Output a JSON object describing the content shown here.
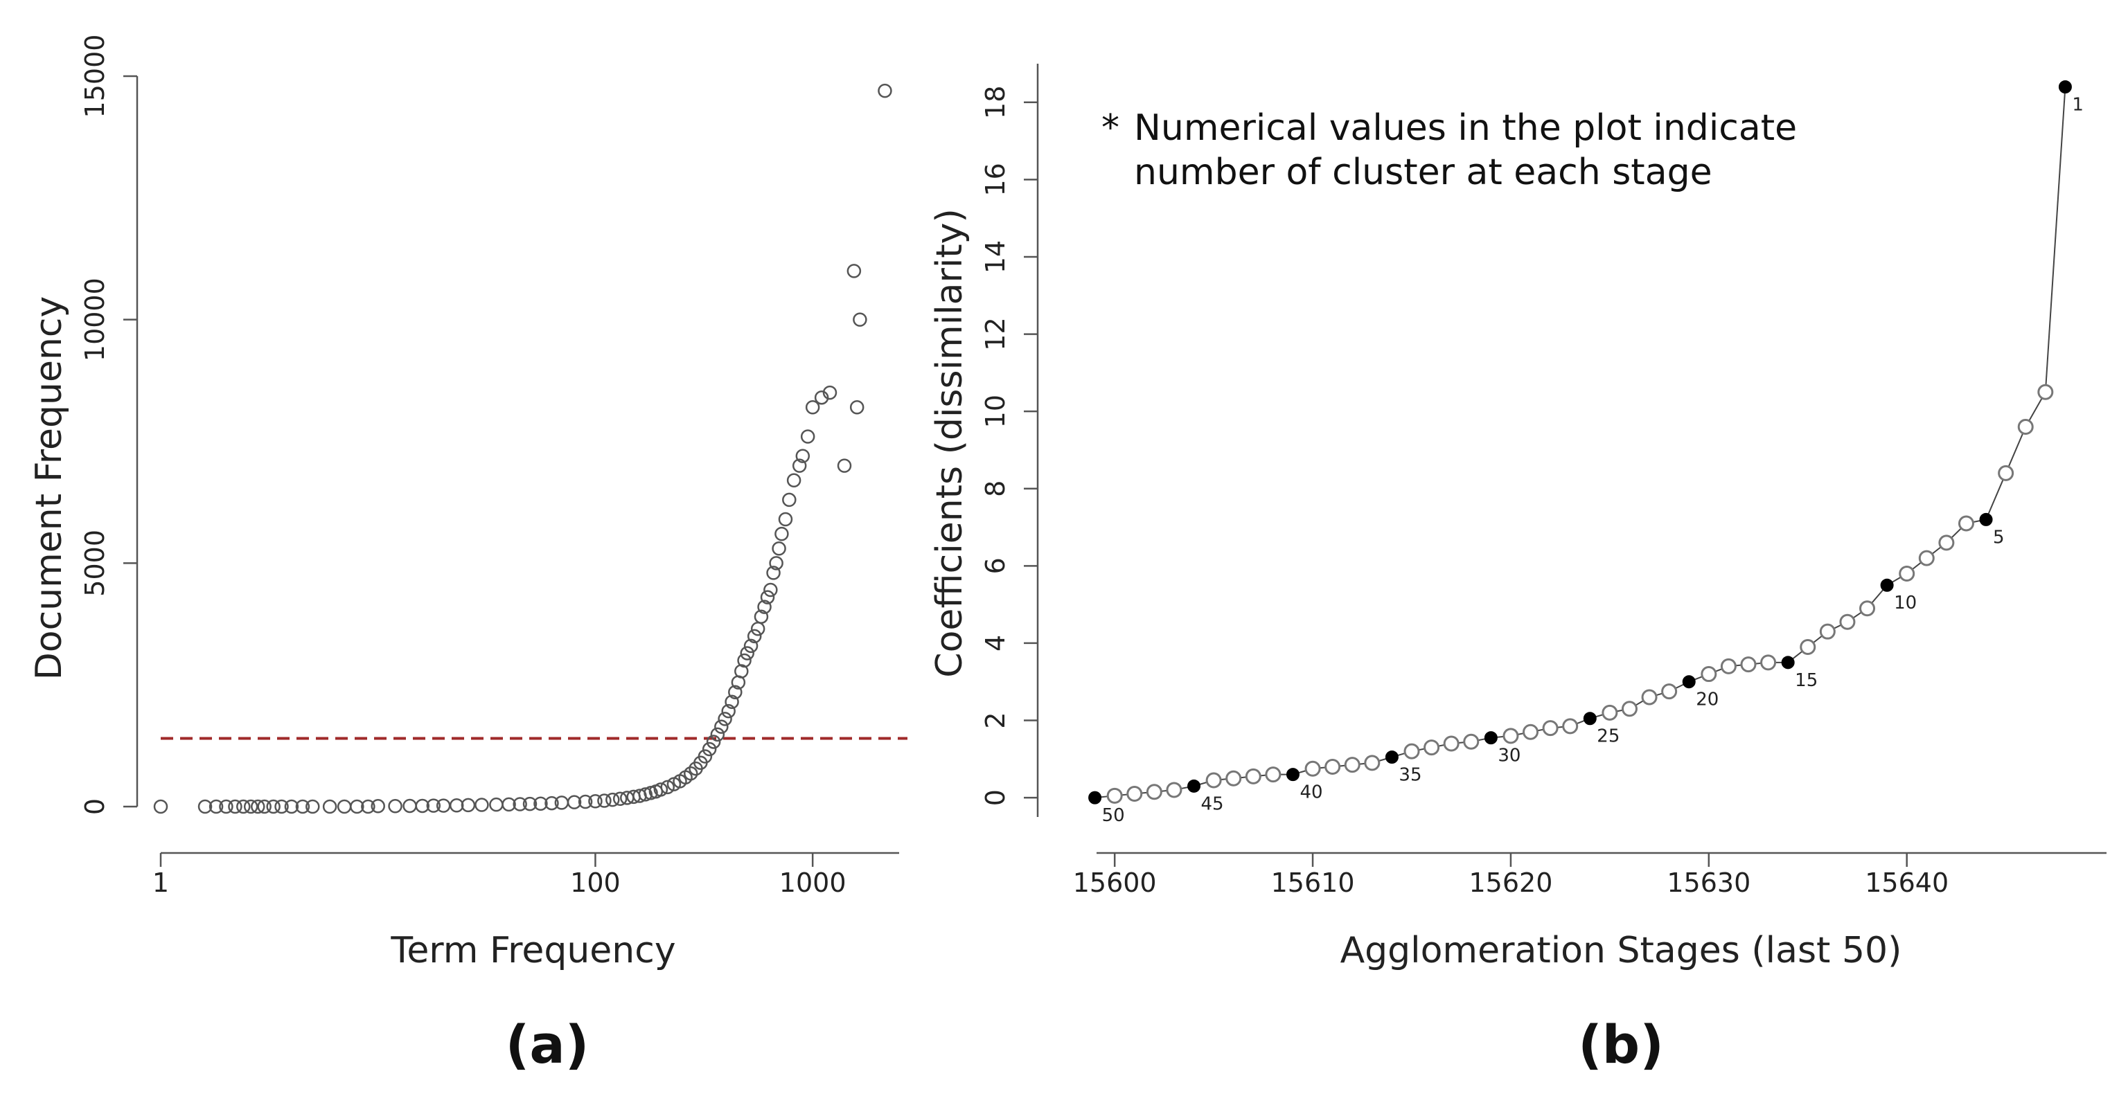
{
  "panels": {
    "a": {
      "label": "(a)"
    },
    "b": {
      "label": "(b)"
    }
  },
  "chart_data": [
    {
      "id": "a",
      "type": "scatter",
      "xscale": "log",
      "xlabel": "Term Frequency",
      "ylabel": "Document Frequency",
      "xlim": [
        1,
        2500
      ],
      "ylim": [
        0,
        15000
      ],
      "xticks": [
        1,
        100,
        1000
      ],
      "xtick_labels": [
        "1",
        "100",
        "1000"
      ],
      "yticks": [
        0,
        5000,
        10000,
        15000
      ],
      "ytick_labels": [
        "0",
        "5000",
        "10000",
        "15000"
      ],
      "hline": {
        "y": 1400,
        "color": "#a02a2a",
        "style": "dashed"
      },
      "marker": "open-circle",
      "points": [
        [
          1.0,
          0
        ],
        [
          1.6,
          0
        ],
        [
          1.8,
          0
        ],
        [
          2.0,
          0
        ],
        [
          2.2,
          0
        ],
        [
          2.4,
          0
        ],
        [
          2.6,
          0
        ],
        [
          2.8,
          0
        ],
        [
          3.0,
          0
        ],
        [
          3.3,
          0
        ],
        [
          3.6,
          0
        ],
        [
          4.0,
          0
        ],
        [
          4.5,
          0
        ],
        [
          5,
          0
        ],
        [
          6,
          0
        ],
        [
          7,
          0
        ],
        [
          8,
          0
        ],
        [
          9,
          0
        ],
        [
          10,
          10
        ],
        [
          12,
          10
        ],
        [
          14,
          15
        ],
        [
          16,
          15
        ],
        [
          18,
          20
        ],
        [
          20,
          20
        ],
        [
          23,
          25
        ],
        [
          26,
          30
        ],
        [
          30,
          35
        ],
        [
          35,
          40
        ],
        [
          40,
          45
        ],
        [
          45,
          50
        ],
        [
          50,
          55
        ],
        [
          56,
          60
        ],
        [
          63,
          70
        ],
        [
          70,
          80
        ],
        [
          80,
          90
        ],
        [
          90,
          100
        ],
        [
          100,
          110
        ],
        [
          110,
          120
        ],
        [
          120,
          140
        ],
        [
          130,
          160
        ],
        [
          140,
          180
        ],
        [
          150,
          200
        ],
        [
          160,
          220
        ],
        [
          170,
          250
        ],
        [
          180,
          280
        ],
        [
          190,
          310
        ],
        [
          200,
          350
        ],
        [
          215,
          400
        ],
        [
          230,
          460
        ],
        [
          245,
          520
        ],
        [
          260,
          600
        ],
        [
          275,
          680
        ],
        [
          290,
          780
        ],
        [
          305,
          900
        ],
        [
          320,
          1030
        ],
        [
          335,
          1180
        ],
        [
          350,
          1330
        ],
        [
          365,
          1480
        ],
        [
          380,
          1640
        ],
        [
          395,
          1800
        ],
        [
          410,
          1960
        ],
        [
          425,
          2150
        ],
        [
          440,
          2350
        ],
        [
          455,
          2550
        ],
        [
          470,
          2780
        ],
        [
          485,
          3000
        ],
        [
          500,
          3150
        ],
        [
          520,
          3300
        ],
        [
          540,
          3500
        ],
        [
          560,
          3650
        ],
        [
          580,
          3900
        ],
        [
          600,
          4100
        ],
        [
          620,
          4300
        ],
        [
          640,
          4450
        ],
        [
          660,
          4800
        ],
        [
          680,
          5000
        ],
        [
          700,
          5300
        ],
        [
          720,
          5600
        ],
        [
          750,
          5900
        ],
        [
          780,
          6300
        ],
        [
          820,
          6700
        ],
        [
          870,
          7000
        ],
        [
          900,
          7200
        ],
        [
          950,
          7600
        ],
        [
          1000,
          8200
        ],
        [
          1100,
          8400
        ],
        [
          1200,
          8500
        ],
        [
          1400,
          7000
        ],
        [
          1550,
          11000
        ],
        [
          1600,
          8200
        ],
        [
          1650,
          10000
        ],
        [
          2150,
          14700
        ]
      ]
    },
    {
      "id": "b",
      "type": "line",
      "xlabel": "Agglomeration Stages (last 50)",
      "ylabel": "Coefficients (dissimilarity)",
      "xlim": [
        15598,
        15649
      ],
      "ylim": [
        -0.5,
        19
      ],
      "xticks": [
        15600,
        15610,
        15620,
        15630,
        15640
      ],
      "xtick_labels": [
        "15600",
        "15610",
        "15620",
        "15630",
        "15640"
      ],
      "yticks": [
        0,
        2,
        4,
        6,
        8,
        10,
        12,
        14,
        16,
        18
      ],
      "ytick_labels": [
        "0",
        "2",
        "4",
        "6",
        "8",
        "10",
        "12",
        "14",
        "16",
        "18"
      ],
      "annotation": {
        "star": "*",
        "line1": "Numerical values in the plot indicate",
        "line2": "number of cluster at each stage"
      },
      "stages": [
        15599,
        15600,
        15601,
        15602,
        15603,
        15604,
        15605,
        15606,
        15607,
        15608,
        15609,
        15610,
        15611,
        15612,
        15613,
        15614,
        15615,
        15616,
        15617,
        15618,
        15619,
        15620,
        15621,
        15622,
        15623,
        15624,
        15625,
        15626,
        15627,
        15628,
        15629,
        15630,
        15631,
        15632,
        15633,
        15634,
        15635,
        15636,
        15637,
        15638,
        15639,
        15640,
        15641,
        15642,
        15643,
        15644,
        15645,
        15646,
        15647,
        15648
      ],
      "coefficients": [
        0.0,
        0.05,
        0.1,
        0.15,
        0.2,
        0.3,
        0.45,
        0.5,
        0.55,
        0.6,
        0.6,
        0.75,
        0.8,
        0.85,
        0.9,
        1.05,
        1.2,
        1.3,
        1.4,
        1.45,
        1.55,
        1.6,
        1.7,
        1.8,
        1.85,
        2.05,
        2.2,
        2.3,
        2.6,
        2.75,
        3.0,
        3.2,
        3.4,
        3.45,
        3.5,
        3.5,
        3.9,
        4.3,
        4.55,
        4.9,
        5.5,
        5.8,
        6.2,
        6.6,
        7.1,
        7.2,
        8.4,
        9.6,
        10.5,
        18.4
      ],
      "filled_stages": [
        15599,
        15604,
        15609,
        15614,
        15619,
        15624,
        15629,
        15634,
        15639,
        15644,
        15648
      ],
      "cluster_labels": [
        "50",
        "45",
        "40",
        "35",
        "30",
        "25",
        "20",
        "15",
        "10",
        "5",
        "1"
      ]
    }
  ]
}
